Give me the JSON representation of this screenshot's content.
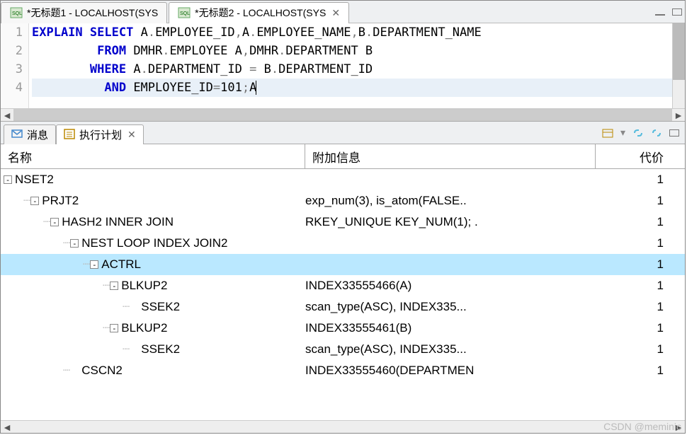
{
  "tabs": [
    {
      "label": "*无标题1 - LOCALHOST(SYS",
      "active": false
    },
    {
      "label": "*无标题2 - LOCALHOST(SYS",
      "active": true
    }
  ],
  "code": {
    "lines": [
      {
        "n": "1",
        "segments": [
          {
            "t": "EXPLAIN",
            "c": "kw"
          },
          {
            "t": " ",
            "c": ""
          },
          {
            "t": "SELECT",
            "c": "kw"
          },
          {
            "t": " A",
            "c": ""
          },
          {
            "t": ".",
            "c": "op"
          },
          {
            "t": "EMPLOYEE_ID",
            "c": ""
          },
          {
            "t": ",",
            "c": "op"
          },
          {
            "t": "A",
            "c": ""
          },
          {
            "t": ".",
            "c": "op"
          },
          {
            "t": "EMPLOYEE_NAME",
            "c": ""
          },
          {
            "t": ",",
            "c": "op"
          },
          {
            "t": "B",
            "c": ""
          },
          {
            "t": ".",
            "c": "op"
          },
          {
            "t": "DEPARTMENT_NAME",
            "c": ""
          }
        ]
      },
      {
        "n": "2",
        "segments": [
          {
            "t": "         ",
            "c": ""
          },
          {
            "t": "FROM",
            "c": "kw"
          },
          {
            "t": " DMHR",
            "c": ""
          },
          {
            "t": ".",
            "c": "op"
          },
          {
            "t": "EMPLOYEE A",
            "c": ""
          },
          {
            "t": ",",
            "c": "op"
          },
          {
            "t": "DMHR",
            "c": ""
          },
          {
            "t": ".",
            "c": "op"
          },
          {
            "t": "DEPARTMENT B",
            "c": ""
          }
        ]
      },
      {
        "n": "3",
        "segments": [
          {
            "t": "        ",
            "c": ""
          },
          {
            "t": "WHERE",
            "c": "kw"
          },
          {
            "t": " A",
            "c": ""
          },
          {
            "t": ".",
            "c": "op"
          },
          {
            "t": "DEPARTMENT_ID ",
            "c": ""
          },
          {
            "t": "=",
            "c": "op"
          },
          {
            "t": " B",
            "c": ""
          },
          {
            "t": ".",
            "c": "op"
          },
          {
            "t": "DEPARTMENT_ID",
            "c": ""
          }
        ]
      },
      {
        "n": "4",
        "current": true,
        "segments": [
          {
            "t": "          ",
            "c": ""
          },
          {
            "t": "AND",
            "c": "kw"
          },
          {
            "t": " EMPLOYEE_ID",
            "c": ""
          },
          {
            "t": "=",
            "c": "op"
          },
          {
            "t": "101",
            "c": ""
          },
          {
            "t": ";",
            "c": "op"
          },
          {
            "t": "A",
            "c": ""
          }
        ]
      }
    ]
  },
  "lower_tabs": {
    "msg_icon_label": "消息",
    "plan_label": "执行计划"
  },
  "columns": {
    "name": "名称",
    "info": "附加信息",
    "cost": "代价"
  },
  "plan": [
    {
      "indent": 0,
      "exp": "-",
      "name": "NSET2",
      "info": "",
      "cost": "1",
      "selected": false
    },
    {
      "indent": 1,
      "exp": "-",
      "name": "PRJT2",
      "info": "exp_num(3), is_atom(FALSE..",
      "cost": "1",
      "selected": false
    },
    {
      "indent": 2,
      "exp": "-",
      "name": "HASH2 INNER JOIN",
      "info": "RKEY_UNIQUE KEY_NUM(1); .",
      "cost": "1",
      "selected": false
    },
    {
      "indent": 3,
      "exp": "-",
      "name": "NEST LOOP INDEX JOIN2",
      "info": "",
      "cost": "1",
      "selected": false
    },
    {
      "indent": 4,
      "exp": "-",
      "name": "ACTRL",
      "info": "",
      "cost": "1",
      "selected": true
    },
    {
      "indent": 5,
      "exp": "-",
      "name": "BLKUP2",
      "info": "INDEX33555466(A)",
      "cost": "1",
      "selected": false
    },
    {
      "indent": 6,
      "exp": "",
      "name": "SSEK2",
      "info": "scan_type(ASC), INDEX335...",
      "cost": "1",
      "selected": false
    },
    {
      "indent": 5,
      "exp": "-",
      "name": "BLKUP2",
      "info": "INDEX33555461(B)",
      "cost": "1",
      "selected": false
    },
    {
      "indent": 6,
      "exp": "",
      "name": "SSEK2",
      "info": "scan_type(ASC), INDEX335...",
      "cost": "1",
      "selected": false
    },
    {
      "indent": 3,
      "exp": "",
      "name": "CSCN2",
      "info": "INDEX33555460(DEPARTMEN",
      "cost": "1",
      "selected": false
    }
  ],
  "watermark": "CSDN @meminic",
  "colors": {
    "keyword": "#0000cc",
    "operator": "#777777",
    "selected_row": "#bae8ff",
    "current_line": "#e8f0f8"
  }
}
